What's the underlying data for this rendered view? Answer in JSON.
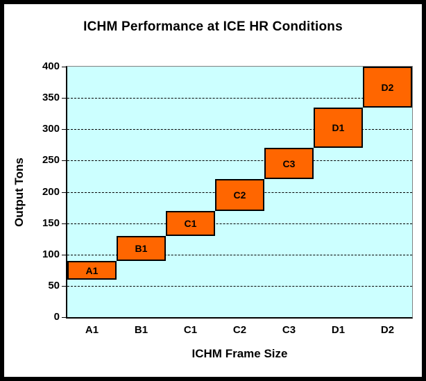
{
  "title": "ICHM Performance at ICE HR Conditions",
  "y_axis": {
    "title": "Output Tons",
    "tick_labels": [
      "0",
      "50",
      "100",
      "150",
      "200",
      "250",
      "300",
      "350",
      "400"
    ]
  },
  "x_axis": {
    "title": "ICHM Frame Size",
    "category_labels": [
      "A1",
      "B1",
      "C1",
      "C2",
      "C3",
      "D1",
      "D2"
    ]
  },
  "colors": {
    "bar_fill": "#FF6600",
    "bar_border": "#000000",
    "plot_background": "#CCFFFF",
    "gridline": "#000000",
    "axis_line": "#000000",
    "plot_border": "#808080",
    "text": "#000000",
    "outer_border": "#000000",
    "page_background": "#FFFFFF"
  },
  "chart_data": {
    "type": "bar",
    "subtype": "floating-range-columns",
    "title": "ICHM Performance at ICE HR Conditions",
    "xlabel": "ICHM Frame Size",
    "ylabel": "Output Tons",
    "categories": [
      "A1",
      "B1",
      "C1",
      "C2",
      "C3",
      "D1",
      "D2"
    ],
    "series": [
      {
        "name": "Output range (tons)",
        "ranges": [
          {
            "label": "A1",
            "low": 60,
            "high": 90
          },
          {
            "label": "B1",
            "low": 90,
            "high": 130
          },
          {
            "label": "C1",
            "low": 130,
            "high": 170
          },
          {
            "label": "C2",
            "low": 170,
            "high": 220
          },
          {
            "label": "C3",
            "low": 220,
            "high": 270
          },
          {
            "label": "D1",
            "low": 270,
            "high": 335
          },
          {
            "label": "D2",
            "low": 335,
            "high": 400
          }
        ]
      }
    ],
    "ylim": [
      0,
      400
    ],
    "yticks": [
      0,
      50,
      100,
      150,
      200,
      250,
      300,
      350,
      400
    ],
    "grid": "horizontal-dashed",
    "legend": "none",
    "bar_gap": "none (bars span full category width, touching at corners)"
  }
}
